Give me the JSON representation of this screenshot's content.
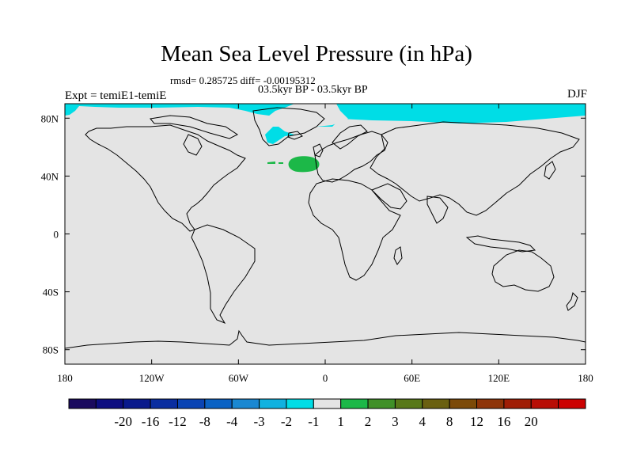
{
  "chart_data": {
    "type": "heatmap",
    "title": "Mean Sea Level Pressure (in hPa)",
    "stats_label": "rmsd= 0.285725 diff= -0.00195312",
    "period_label": "03.5kyr BP - 03.5kyr BP",
    "experiment_label": "Expt = temiE1-temiE",
    "season_label": "DJF",
    "projection": "cylindrical equidistant",
    "xlim": [
      -180,
      180
    ],
    "ylim": [
      -90,
      90
    ],
    "x_ticks": [
      {
        "value": -180,
        "label": "180"
      },
      {
        "value": -120,
        "label": "120W"
      },
      {
        "value": -60,
        "label": "60W"
      },
      {
        "value": 0,
        "label": "0"
      },
      {
        "value": 60,
        "label": "60E"
      },
      {
        "value": 120,
        "label": "120E"
      },
      {
        "value": 180,
        "label": "180"
      }
    ],
    "y_ticks": [
      {
        "value": 80,
        "label": "80N"
      },
      {
        "value": 40,
        "label": "40N"
      },
      {
        "value": 0,
        "label": "0"
      },
      {
        "value": -40,
        "label": "40S"
      },
      {
        "value": -80,
        "label": "80S"
      }
    ],
    "colorbar": {
      "colors": [
        "#1a0a5e",
        "#0d0d80",
        "#0a1a8c",
        "#0a2ea0",
        "#0a44b4",
        "#0a62c4",
        "#1a88d2",
        "#10b2e0",
        "#00dde6",
        "#e4e4e4",
        "#1cb848",
        "#409028",
        "#587818",
        "#6a6010",
        "#7c4a08",
        "#8e3408",
        "#a01e06",
        "#b80e06",
        "#cc0202"
      ],
      "labels": [
        "-20",
        "-16",
        "-12",
        "-8",
        "-4",
        "-3",
        "-2",
        "-1",
        "1",
        "2",
        "3",
        "4",
        "8",
        "12",
        "16",
        "20"
      ]
    },
    "background_value_range": [
      -1,
      1
    ],
    "regions": [
      {
        "name": "arctic-ocean-anomaly",
        "range": [
          -2,
          -1
        ],
        "lon": [
          -180,
          180
        ],
        "lat": [
          67,
          90
        ]
      },
      {
        "name": "north-atlantic-anomaly",
        "range": [
          1,
          2
        ],
        "lon": [
          -20,
          -6
        ],
        "lat": [
          42,
          50
        ]
      }
    ]
  }
}
